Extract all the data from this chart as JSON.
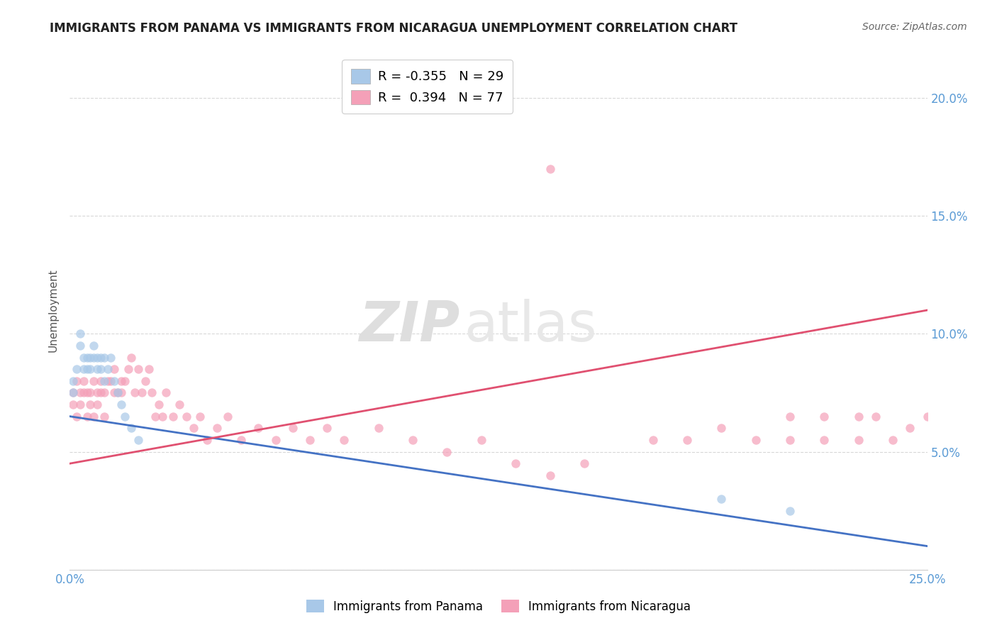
{
  "title": "IMMIGRANTS FROM PANAMA VS IMMIGRANTS FROM NICARAGUA UNEMPLOYMENT CORRELATION CHART",
  "source": "Source: ZipAtlas.com",
  "ylabel": "Unemployment",
  "xlim": [
    0.0,
    0.25
  ],
  "ylim": [
    0.0,
    0.22
  ],
  "ytick_vals": [
    0.0,
    0.05,
    0.1,
    0.15,
    0.2
  ],
  "xtick_vals": [
    0.0,
    0.05,
    0.1,
    0.15,
    0.2,
    0.25
  ],
  "legend_r_panama": "-0.355",
  "legend_n_panama": "29",
  "legend_r_nicaragua": "0.394",
  "legend_n_nicaragua": "77",
  "color_panama": "#a8c8e8",
  "color_nicaragua": "#f4a0b8",
  "trendline_panama_color": "#4472c4",
  "trendline_nicaragua_color": "#e05070",
  "background_color": "#ffffff",
  "grid_color": "#d8d8d8",
  "tick_color": "#5b9bd5",
  "panama_scatter_x": [
    0.001,
    0.001,
    0.002,
    0.003,
    0.003,
    0.004,
    0.004,
    0.005,
    0.005,
    0.006,
    0.006,
    0.007,
    0.007,
    0.008,
    0.008,
    0.009,
    0.009,
    0.01,
    0.01,
    0.011,
    0.012,
    0.013,
    0.014,
    0.015,
    0.016,
    0.018,
    0.02,
    0.19,
    0.21
  ],
  "panama_scatter_y": [
    0.075,
    0.08,
    0.085,
    0.095,
    0.1,
    0.09,
    0.085,
    0.09,
    0.085,
    0.09,
    0.085,
    0.095,
    0.09,
    0.085,
    0.09,
    0.09,
    0.085,
    0.08,
    0.09,
    0.085,
    0.09,
    0.08,
    0.075,
    0.07,
    0.065,
    0.06,
    0.055,
    0.03,
    0.025
  ],
  "nicaragua_scatter_x": [
    0.001,
    0.001,
    0.002,
    0.002,
    0.003,
    0.003,
    0.004,
    0.004,
    0.005,
    0.005,
    0.006,
    0.006,
    0.007,
    0.007,
    0.008,
    0.008,
    0.009,
    0.009,
    0.01,
    0.01,
    0.011,
    0.012,
    0.013,
    0.013,
    0.014,
    0.015,
    0.015,
    0.016,
    0.017,
    0.018,
    0.019,
    0.02,
    0.021,
    0.022,
    0.023,
    0.024,
    0.025,
    0.026,
    0.027,
    0.028,
    0.03,
    0.032,
    0.034,
    0.036,
    0.038,
    0.04,
    0.043,
    0.046,
    0.05,
    0.055,
    0.06,
    0.065,
    0.07,
    0.075,
    0.08,
    0.09,
    0.1,
    0.11,
    0.12,
    0.13,
    0.14,
    0.15,
    0.17,
    0.18,
    0.19,
    0.2,
    0.21,
    0.21,
    0.22,
    0.22,
    0.23,
    0.23,
    0.235,
    0.24,
    0.245,
    0.25,
    0.14
  ],
  "nicaragua_scatter_y": [
    0.07,
    0.075,
    0.065,
    0.08,
    0.075,
    0.07,
    0.075,
    0.08,
    0.065,
    0.075,
    0.07,
    0.075,
    0.065,
    0.08,
    0.075,
    0.07,
    0.075,
    0.08,
    0.065,
    0.075,
    0.08,
    0.08,
    0.075,
    0.085,
    0.075,
    0.08,
    0.075,
    0.08,
    0.085,
    0.09,
    0.075,
    0.085,
    0.075,
    0.08,
    0.085,
    0.075,
    0.065,
    0.07,
    0.065,
    0.075,
    0.065,
    0.07,
    0.065,
    0.06,
    0.065,
    0.055,
    0.06,
    0.065,
    0.055,
    0.06,
    0.055,
    0.06,
    0.055,
    0.06,
    0.055,
    0.06,
    0.055,
    0.05,
    0.055,
    0.045,
    0.04,
    0.045,
    0.055,
    0.055,
    0.06,
    0.055,
    0.065,
    0.055,
    0.065,
    0.055,
    0.065,
    0.055,
    0.065,
    0.055,
    0.06,
    0.065,
    0.17
  ],
  "panama_trend_x0": 0.0,
  "panama_trend_y0": 0.065,
  "panama_trend_x1": 0.25,
  "panama_trend_y1": 0.01,
  "nicaragua_trend_x0": 0.0,
  "nicaragua_trend_y0": 0.045,
  "nicaragua_trend_x1": 0.25,
  "nicaragua_trend_y1": 0.11
}
